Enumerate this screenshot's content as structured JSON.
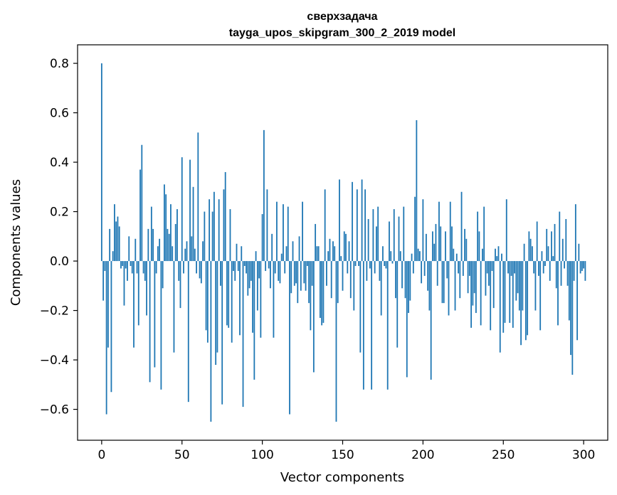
{
  "chart_data": {
    "type": "bar",
    "title": "сверхзадача",
    "subtitle": "tayga_upos_skipgram_300_2_2019 model",
    "xlabel": "Vector components",
    "ylabel": "Components values",
    "xlim": [
      -15,
      315
    ],
    "ylim": [
      -0.725,
      0.875
    ],
    "xticks": [
      0,
      50,
      100,
      150,
      200,
      250,
      300
    ],
    "xtick_labels": [
      "0",
      "50",
      "100",
      "150",
      "200",
      "250",
      "300"
    ],
    "yticks": [
      -0.6,
      -0.4,
      -0.2,
      0.0,
      0.2,
      0.4,
      0.6,
      0.8
    ],
    "ytick_labels": [
      "−0.6",
      "−0.4",
      "−0.2",
      "0.0",
      "0.2",
      "0.4",
      "0.6",
      "0.8"
    ],
    "bar_color": "#1f77b4",
    "values": [
      0.8,
      -0.16,
      -0.04,
      -0.62,
      -0.35,
      0.13,
      -0.53,
      0.04,
      0.23,
      0.16,
      0.18,
      0.14,
      -0.03,
      -0.02,
      -0.18,
      -0.03,
      -0.08,
      0.1,
      -0.02,
      -0.05,
      -0.35,
      0.09,
      -0.05,
      -0.26,
      0.37,
      0.47,
      -0.05,
      -0.08,
      -0.22,
      0.13,
      -0.49,
      0.22,
      0.13,
      -0.43,
      -0.05,
      0.06,
      0.09,
      -0.52,
      -0.11,
      0.31,
      0.27,
      0.13,
      0.11,
      0.23,
      0.06,
      -0.37,
      0.15,
      0.21,
      -0.08,
      -0.19,
      0.42,
      -0.05,
      0.05,
      0.08,
      -0.57,
      0.41,
      0.1,
      0.3,
      0.05,
      -0.05,
      0.52,
      -0.07,
      -0.09,
      0.08,
      0.2,
      -0.28,
      -0.33,
      0.25,
      -0.65,
      0.2,
      0.28,
      -0.42,
      -0.37,
      0.25,
      -0.1,
      -0.58,
      0.29,
      0.36,
      -0.26,
      -0.27,
      0.21,
      -0.33,
      -0.04,
      -0.08,
      0.07,
      -0.04,
      -0.3,
      0.06,
      -0.59,
      -0.02,
      -0.05,
      -0.14,
      -0.11,
      -0.08,
      -0.29,
      -0.48,
      0.04,
      -0.2,
      -0.07,
      -0.31,
      0.19,
      0.53,
      -0.04,
      0.29,
      -0.03,
      -0.11,
      0.11,
      -0.31,
      -0.05,
      0.24,
      -0.08,
      -0.09,
      0.03,
      0.23,
      -0.05,
      0.06,
      0.22,
      -0.62,
      -0.13,
      0.08,
      -0.1,
      -0.09,
      -0.17,
      0.1,
      -0.12,
      0.24,
      -0.09,
      -0.12,
      -0.02,
      -0.17,
      -0.28,
      -0.1,
      -0.45,
      0.15,
      0.06,
      0.06,
      -0.23,
      -0.26,
      -0.25,
      0.29,
      -0.1,
      0.04,
      0.09,
      -0.15,
      0.08,
      0.06,
      -0.65,
      -0.17,
      0.33,
      0.02,
      -0.12,
      0.12,
      0.11,
      -0.05,
      0.08,
      -0.15,
      0.32,
      -0.2,
      -0.02,
      0.29,
      -0.02,
      -0.37,
      0.33,
      -0.52,
      0.29,
      -0.08,
      0.17,
      -0.03,
      -0.52,
      0.21,
      -0.05,
      0.14,
      0.22,
      -0.08,
      -0.22,
      0.06,
      -0.02,
      -0.03,
      -0.52,
      0.16,
      0.04,
      -0.01,
      0.21,
      -0.15,
      -0.35,
      0.18,
      0.04,
      -0.11,
      0.22,
      -0.15,
      -0.47,
      -0.21,
      -0.16,
      0.03,
      -0.05,
      0.26,
      0.57,
      0.05,
      0.04,
      -0.09,
      0.25,
      -0.06,
      0.11,
      -0.12,
      -0.2,
      -0.48,
      0.12,
      0.07,
      0.15,
      -0.1,
      0.24,
      0.14,
      -0.17,
      -0.17,
      0.12,
      -0.07,
      -0.22,
      0.24,
      0.14,
      0.05,
      -0.2,
      0.03,
      -0.05,
      -0.15,
      0.28,
      -0.06,
      0.13,
      0.09,
      -0.13,
      -0.06,
      -0.27,
      -0.18,
      -0.13,
      -0.21,
      0.2,
      0.12,
      -0.26,
      0.05,
      0.22,
      -0.14,
      -0.05,
      -0.1,
      -0.28,
      -0.04,
      -0.19,
      0.05,
      0.02,
      0.06,
      -0.37,
      0.03,
      -0.29,
      -0.25,
      0.25,
      -0.05,
      -0.25,
      -0.06,
      -0.27,
      -0.05,
      -0.16,
      -0.13,
      -0.2,
      -0.34,
      -0.2,
      0.07,
      -0.32,
      -0.3,
      0.12,
      0.09,
      0.06,
      -0.05,
      -0.2,
      0.16,
      -0.06,
      -0.28,
      0.04,
      -0.05,
      -0.02,
      0.13,
      0.06,
      -0.08,
      0.12,
      0.02,
      0.15,
      -0.11,
      -0.26,
      0.2,
      -0.1,
      0.09,
      -0.03,
      0.17,
      -0.1,
      -0.24,
      -0.38,
      -0.46,
      -0.08,
      0.23,
      -0.32,
      0.07,
      -0.05,
      -0.04,
      -0.03,
      -0.08
    ]
  }
}
